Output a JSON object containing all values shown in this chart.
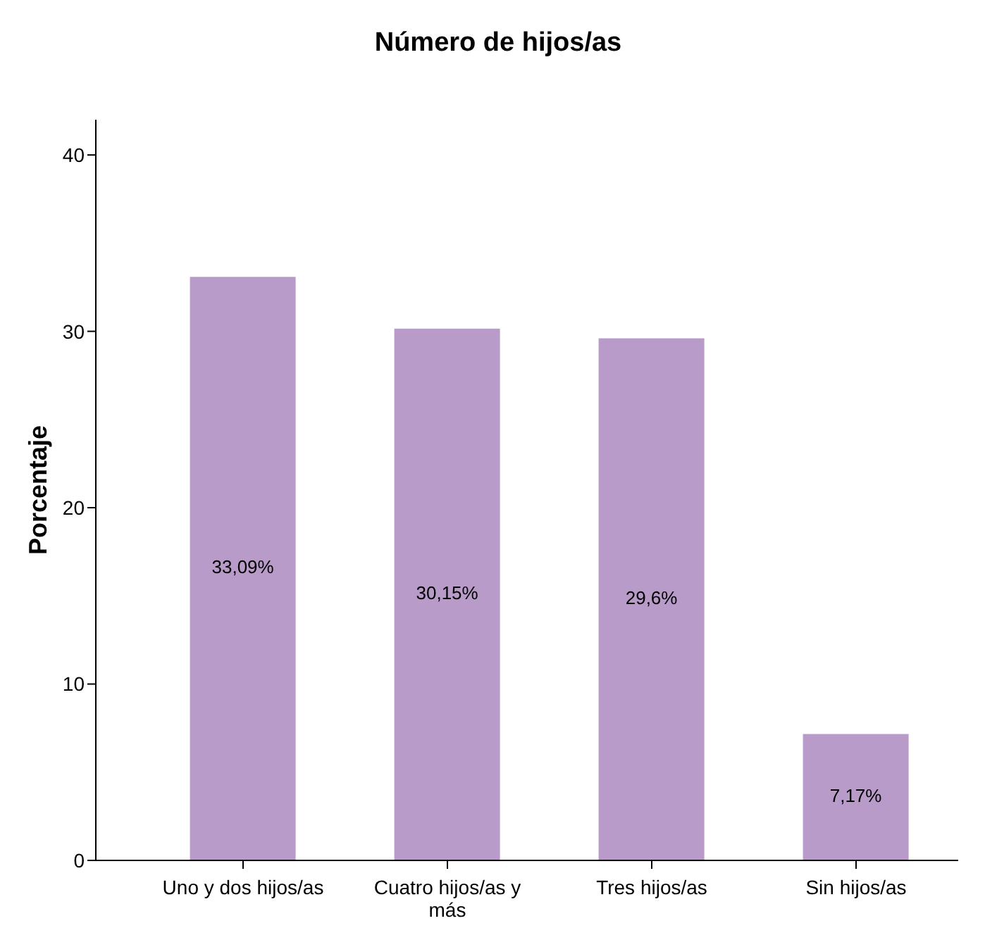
{
  "chart_data": {
    "type": "bar",
    "title": "Número de hijos/as",
    "ylabel": "Porcentaje",
    "categories": [
      "Uno y dos hijos/as",
      "Cuatro hijos/as y más",
      "Tres hijos/as",
      "Sin hijos/as"
    ],
    "values": [
      33.09,
      30.15,
      29.6,
      7.17
    ],
    "value_labels": [
      "33,09%",
      "30,15%",
      "29,6%",
      "7,17%"
    ],
    "color": "#b89bc9",
    "ylim": [
      0,
      42
    ],
    "yticks": [
      0,
      10,
      20,
      30,
      40
    ],
    "grid": false,
    "legend": false
  }
}
